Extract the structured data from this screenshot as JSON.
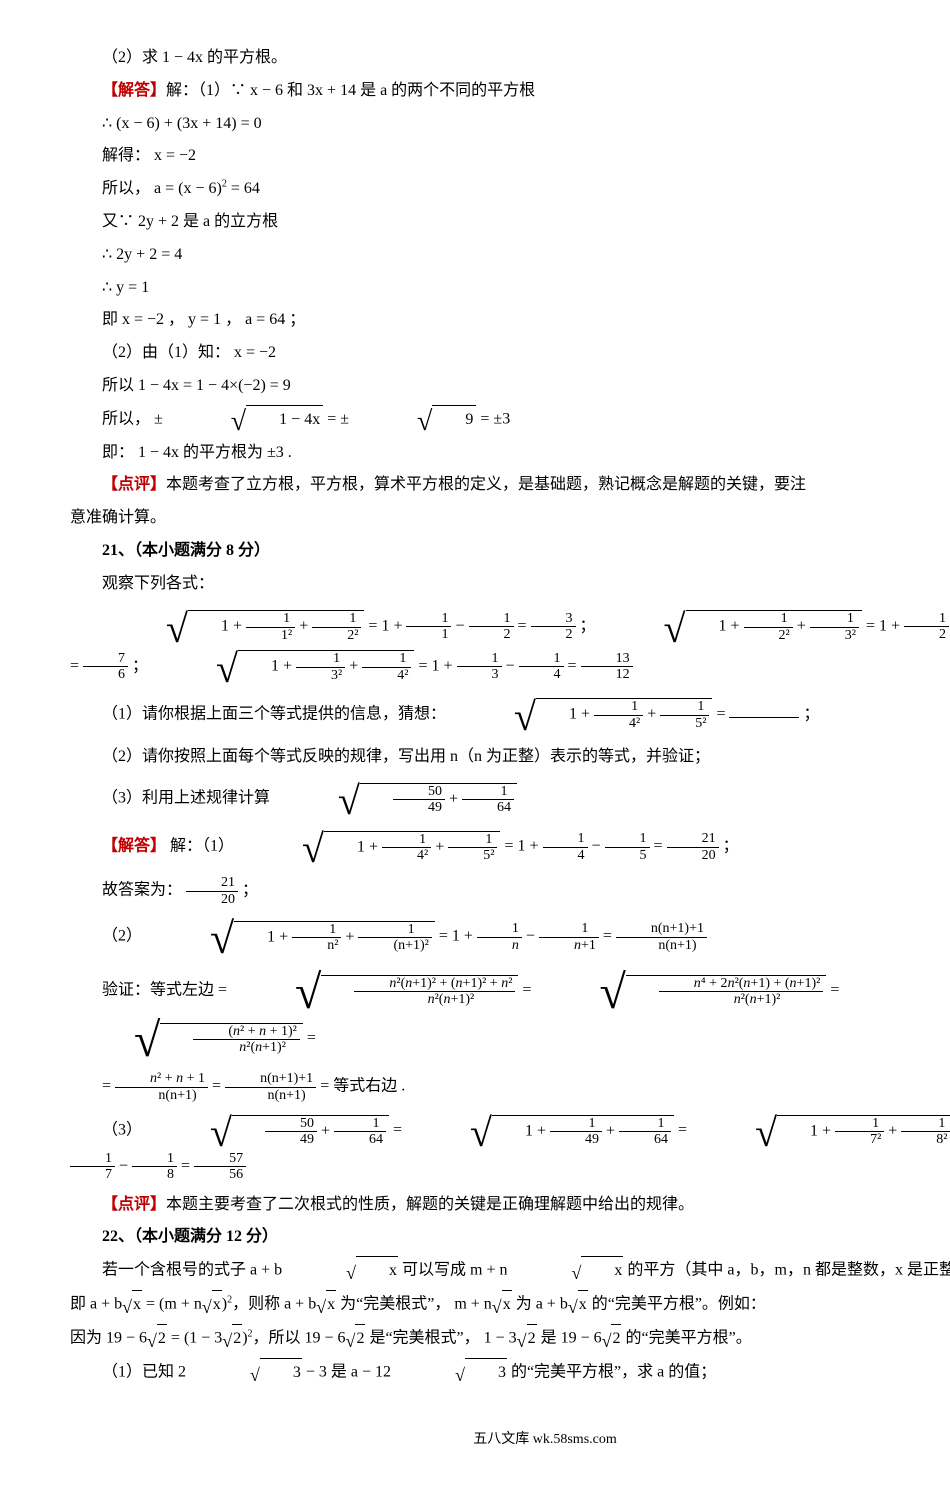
{
  "lines": {
    "l1": "（2）求 1 − 4x 的平方根。",
    "ans_label1": "【解答】",
    "ans_body1": "解：（1）∵ x − 6 和 3x + 14 是 a 的两个不同的平方根",
    "l2": "∴ (x − 6) + (3x + 14) = 0",
    "l3": "解得： x = −2",
    "l4_a": "所以， a = (x − 6)",
    "l4_b": " = 64",
    "l5": "又∵ 2y + 2 是 a 的立方根",
    "l6": "∴ 2y + 2 = 4",
    "l7": "∴ y = 1",
    "l8": "即 x = −2 ， y = 1 ， a = 64 ；",
    "l9": "（2）由（1）知： x = −2",
    "l10": "所以 1 − 4x = 1 − 4×(−2) = 9",
    "l11_a": "所以， ±",
    "l11_b": " = ±",
    "l11_c": " = ±3",
    "l12": "即： 1 − 4x 的平方根为 ±3 .",
    "comment_label": "【点评】",
    "comment1_a": "本题考查了立方根，平方根，算术平方根的定义，是基础题，熟记概念是解题的关键，要注",
    "comment1_b": "意准确计算。",
    "q21_head": "21、（本小题满分 8 分）",
    "q21_intro": "观察下列各式：",
    "q21_sub1_a": "（1）请你根据上面三个等式提供的信息，猜想：",
    "q21_sub1_b": " = ",
    "q21_sub1_c": " ；",
    "q21_sub2": "（2）请你按照上面每个等式反映的规律，写出用 n（n 为正整）表示的等式，并验证；",
    "q21_sub3": "（3）利用上述规律计算",
    "ans_label2": "【解答】",
    "ans21_1_a": "解：（1）",
    "ans21_1_b": " ；",
    "ans21_fill": "故答案为：",
    "ans21_fill_end": " ；",
    "ans21_2": "（2）",
    "verify": "验证：等式左边 = ",
    "verify_end": " = 等式右边 .",
    "ans21_3": "（3）",
    "comment2": "本题主要考查了二次根式的性质，解题的关键是正确理解题中给出的规律。",
    "q22_head": "22、（本小题满分 12 分）",
    "q22_line1_a": "若一个含根号的式子 a + b",
    "q22_line1_b": " 可以写成 m + n",
    "q22_line1_c": " 的平方（其中 a，b，m，n 都是整数，x 是正整数），",
    "q22_line2_a": "即 a + b",
    "q22_line2_b": " = (m + n",
    "q22_line2_c": ")",
    "q22_line2_d": "，则称 a + b",
    "q22_line2_e": " 为“完美根式”， m + n",
    "q22_line2_f": " 为 a + b",
    "q22_line2_g": " 的“完美平方根”。例如：",
    "q22_line3_a": "因为 19 − 6",
    "q22_line3_b": " = (1 − 3",
    "q22_line3_c": ")",
    "q22_line3_d": "，所以 19 − 6",
    "q22_line3_e": " 是“完美根式”， 1 − 3",
    "q22_line3_f": " 是 19 − 6",
    "q22_line3_g": " 的“完美平方根”。",
    "q22_sub1_a": "（1）已知 2",
    "q22_sub1_b": " − 3 是 a − 12",
    "q22_sub1_c": " 的“完美平方根”，求 a 的值；"
  },
  "footer": "五八文库 wk.58sms.com",
  "nums": {
    "one": "1",
    "two": "2",
    "three": "3",
    "four": "4",
    "five": "5",
    "seven": "7",
    "eight": "8",
    "nine": "9",
    "twelve": "12",
    "thirteen": "13",
    "twenty": "20",
    "twentyone": "21",
    "fortynine": "49",
    "fifty": "50",
    "fiftysix": "56",
    "fiftyseven": "57",
    "sixtyfour": "64",
    "sq2": "2",
    "sq3": "3",
    "onesq": "1²",
    "twosq": "2²",
    "threesq": "3²",
    "foursq": "4²",
    "fivesq": "5²",
    "sevensq": "7²",
    "eightsq": "8²",
    "nsq": "n²",
    "np1sq": "(n+1)²",
    "threehalf": "3",
    "sevensixth": "7",
    "six": "6",
    "nn1p1": "n(n+1)+1",
    "nn1": "n(n+1)",
    "x": "x",
    "14x": "1 − 4x"
  }
}
